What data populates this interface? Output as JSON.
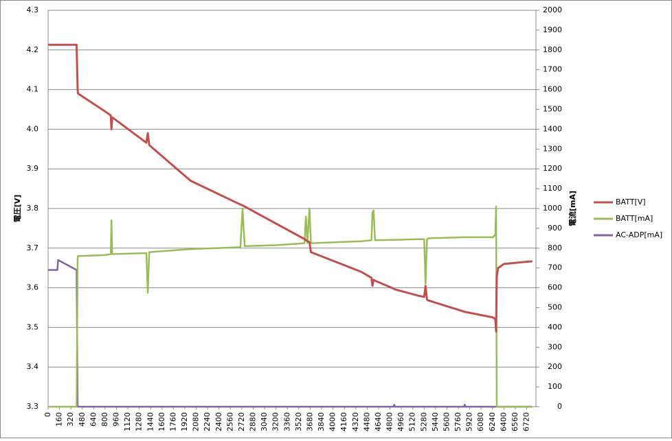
{
  "chart_data": {
    "type": "line",
    "y_label": "電圧[V]",
    "y2_label": "電流[mA]",
    "x": [
      0,
      130,
      140,
      400,
      415,
      420,
      800,
      880,
      890,
      900,
      1380,
      1400,
      1420,
      2000,
      2700,
      2730,
      2760,
      3200,
      3600,
      3620,
      3640,
      3670,
      3690,
      4400,
      4540,
      4555,
      4570,
      4590,
      4850,
      4860,
      4870,
      5200,
      5280,
      5300,
      5320,
      5340,
      5840,
      5850,
      5860,
      6250,
      6280,
      6290,
      6300,
      6320,
      6400,
      6800
    ],
    "series": [
      {
        "name": "BATT[V]",
        "color": "#c0504d",
        "axis": "y",
        "values": [
          4.213,
          4.213,
          4.213,
          4.213,
          4.1,
          4.09,
          4.045,
          4.035,
          4.0,
          4.03,
          3.966,
          3.99,
          3.96,
          3.87,
          3.81,
          3.808,
          3.805,
          3.762,
          3.723,
          3.72,
          3.718,
          3.715,
          3.69,
          3.64,
          3.625,
          3.605,
          3.62,
          3.618,
          3.598,
          3.597,
          3.596,
          3.58,
          3.577,
          3.605,
          3.57,
          3.568,
          3.54,
          3.539,
          3.539,
          3.525,
          3.52,
          3.49,
          3.63,
          3.65,
          3.66,
          3.667
        ]
      },
      {
        "name": "BATT[mA]",
        "color": "#9bbb59",
        "axis": "y2",
        "values": [
          0,
          0,
          0,
          0,
          750,
          760,
          765,
          770,
          940,
          770,
          775,
          575,
          780,
          795,
          805,
          1000,
          810,
          815,
          825,
          960,
          825,
          1000,
          825,
          835,
          840,
          980,
          990,
          840,
          842,
          842,
          842,
          845,
          845,
          620,
          845,
          850,
          855,
          855,
          855,
          855,
          870,
          1010,
          0,
          0,
          0,
          0
        ]
      },
      {
        "name": "AC-ADP[mA]",
        "color": "#8064a2",
        "axis": "y2",
        "values": [
          690,
          690,
          740,
          690,
          0,
          0,
          0,
          0,
          0,
          0,
          0,
          0,
          0,
          0,
          0,
          0,
          0,
          0,
          0,
          0,
          0,
          0,
          0,
          0,
          0,
          0,
          0,
          0,
          0,
          10,
          0,
          0,
          0,
          0,
          0,
          0,
          0,
          10,
          0,
          0,
          0,
          0,
          0,
          0,
          0,
          0
        ]
      }
    ],
    "xlim": [
      0,
      6850
    ],
    "xticks": [
      0,
      160,
      320,
      480,
      640,
      800,
      960,
      1120,
      1280,
      1440,
      1600,
      1760,
      1920,
      2080,
      2240,
      2400,
      2560,
      2720,
      2880,
      3040,
      3200,
      3360,
      3520,
      3680,
      3840,
      4000,
      4160,
      4320,
      4480,
      4640,
      4800,
      4960,
      5120,
      5280,
      5440,
      5600,
      5760,
      5920,
      6080,
      6240,
      6400,
      6560,
      6720
    ],
    "ylim": [
      3.3,
      4.3
    ],
    "yticks": [
      3.3,
      3.4,
      3.5,
      3.6,
      3.7,
      3.8,
      3.9,
      {
        "value": 4,
        "label": "4.0"
      },
      4.1,
      4.2,
      4.3
    ],
    "y2lim": [
      0,
      2000
    ],
    "y2ticks": [
      0,
      100,
      200,
      300,
      400,
      500,
      600,
      700,
      800,
      900,
      1000,
      1100,
      1200,
      1300,
      1400,
      1500,
      1600,
      1700,
      1800,
      1900,
      2000
    ],
    "grid": true
  }
}
